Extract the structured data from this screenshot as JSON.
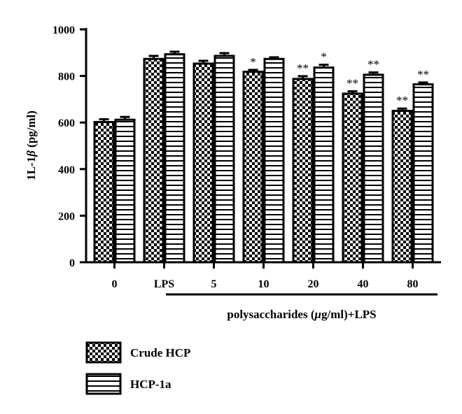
{
  "chart_data": {
    "type": "bar",
    "categories": [
      "0",
      "LPS",
      "5",
      "10",
      "20",
      "40",
      "80"
    ],
    "series": [
      {
        "name": "Crude HCP",
        "pattern": "checkerboard",
        "values": [
          602,
          873,
          853,
          818,
          787,
          724,
          650
        ],
        "errors": [
          12,
          13,
          12,
          8,
          12,
          10,
          10
        ],
        "significance": [
          "",
          "",
          "",
          "*",
          "**",
          "**",
          "**"
        ]
      },
      {
        "name": "HCP-1a",
        "pattern": "horizontal-stripes",
        "values": [
          612,
          893,
          886,
          873,
          836,
          805,
          764
        ],
        "errors": [
          12,
          11,
          12,
          7,
          12,
          10,
          8
        ],
        "significance": [
          "",
          "",
          "",
          "",
          "*",
          "**",
          "**"
        ]
      }
    ],
    "ylabel_prefix": "1L-1",
    "ylabel_symbol": "β",
    "ylabel_suffix": " (pg/ml)",
    "ylim": [
      0,
      1000
    ],
    "yticks": [
      "0",
      "200",
      "400",
      "600",
      "800",
      "1000"
    ],
    "group_label_prefix": "polysaccharides (",
    "group_label_symbol": "μ",
    "group_label_suffix": "g/ml)+LPS",
    "legend_position": "bottom-left",
    "grid": false
  }
}
